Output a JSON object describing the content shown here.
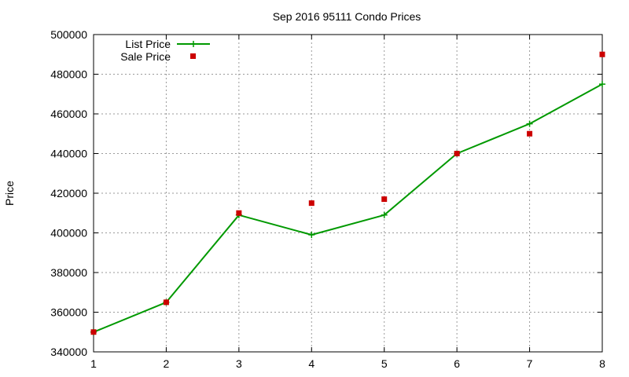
{
  "chart_data": {
    "type": "line",
    "title": "Sep 2016 95111 Condo Prices",
    "xlabel": "",
    "ylabel": "Price",
    "x": [
      1,
      2,
      3,
      4,
      5,
      6,
      7,
      8
    ],
    "xlim": [
      1,
      8
    ],
    "ylim": [
      340000,
      500000
    ],
    "x_ticks": [
      1,
      2,
      3,
      4,
      5,
      6,
      7,
      8
    ],
    "y_ticks": [
      340000,
      360000,
      380000,
      400000,
      420000,
      440000,
      460000,
      480000,
      500000
    ],
    "grid": true,
    "legend_position": "top-left",
    "series": [
      {
        "name": "List Price",
        "style": "line-with-plus-markers",
        "color": "#009900",
        "values": [
          350000,
          365000,
          409000,
          399000,
          409000,
          440000,
          455000,
          475000
        ]
      },
      {
        "name": "Sale Price",
        "style": "square-markers",
        "color": "#cc0000",
        "values": [
          350000,
          365000,
          410000,
          415000,
          417000,
          440000,
          450000,
          490000
        ]
      }
    ]
  }
}
